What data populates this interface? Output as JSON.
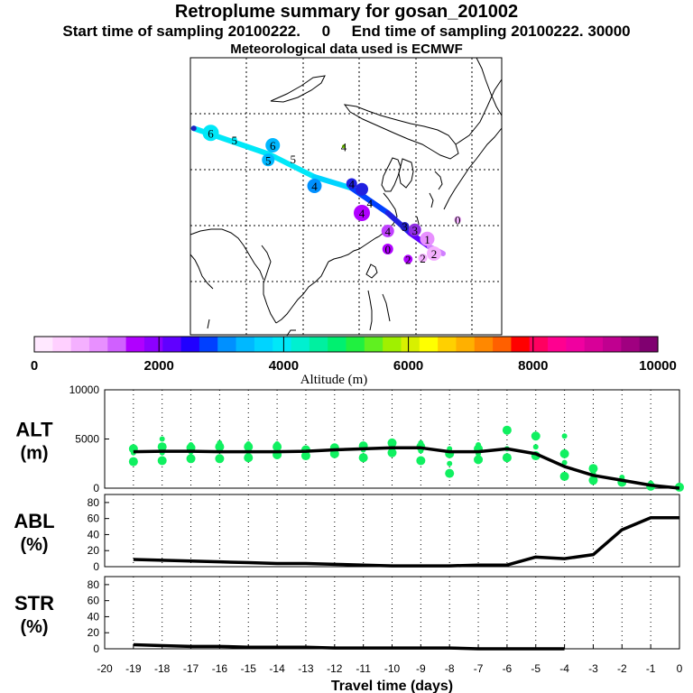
{
  "title": "Retroplume summary for gosan_201002",
  "subtitle": "Start time of sampling 20100222.     0     End time of sampling 20100222. 30000",
  "met_line": "Meteorological data used is ECMWF",
  "colorbar": {
    "label": "Altitude (m)",
    "ticks": [
      "0",
      "2000",
      "4000",
      "6000",
      "8000",
      "10000"
    ],
    "colors": [
      "#ffe8ff",
      "#ffd0ff",
      "#f4b0ff",
      "#e890ff",
      "#d060ff",
      "#b000ff",
      "#8c00ff",
      "#6000ff",
      "#2000ff",
      "#0040ff",
      "#0090ff",
      "#00b8ff",
      "#00d4ff",
      "#00e8f8",
      "#00f0d0",
      "#00f0a0",
      "#00f070",
      "#20f040",
      "#60f020",
      "#a0f000",
      "#d8f000",
      "#ffff00",
      "#ffd000",
      "#ffb000",
      "#ff8800",
      "#ff6000",
      "#ff0000",
      "#ff0060",
      "#ff0090",
      "#f000a0",
      "#d80098",
      "#c00090",
      "#a00080",
      "#800070"
    ]
  },
  "map": {
    "points": [
      {
        "lon": 111.8,
        "lat": 37.9,
        "label": "6",
        "color": "#00e8f8",
        "size": 9
      },
      {
        "lon": 110.3,
        "lat": 38.3,
        "label": "",
        "color": "#2020c0",
        "size": 3
      },
      {
        "lon": 113.9,
        "lat": 37.3,
        "label": "5",
        "color": "#00e8f8",
        "size": 3
      },
      {
        "lon": 117.3,
        "lat": 36.8,
        "label": "6",
        "color": "#00b8ff",
        "size": 8
      },
      {
        "lon": 116.9,
        "lat": 35.5,
        "label": "5",
        "color": "#00b8ff",
        "size": 7
      },
      {
        "lon": 119.1,
        "lat": 35.6,
        "label": "5",
        "color": "#000000",
        "size": 0
      },
      {
        "lon": 123.6,
        "lat": 36.7,
        "label": "4",
        "color": "#80e000",
        "size": 2
      },
      {
        "lon": 121.0,
        "lat": 33.2,
        "label": "4",
        "color": "#0090ff",
        "size": 8
      },
      {
        "lon": 124.3,
        "lat": 33.4,
        "label": "4",
        "color": "#2020e0",
        "size": 6
      },
      {
        "lon": 125.2,
        "lat": 32.9,
        "label": "",
        "color": "#2020e0",
        "size": 7
      },
      {
        "lon": 125.9,
        "lat": 31.7,
        "label": "4",
        "color": "#000000",
        "size": 0
      },
      {
        "lon": 125.2,
        "lat": 30.8,
        "label": "4",
        "color": "#b000ff",
        "size": 9
      },
      {
        "lon": 127.5,
        "lat": 29.2,
        "label": "4",
        "color": "#c040ff",
        "size": 7
      },
      {
        "lon": 129.0,
        "lat": 29.6,
        "label": "3",
        "color": "#2020c0",
        "size": 5
      },
      {
        "lon": 129.9,
        "lat": 29.3,
        "label": "3",
        "color": "#9030e0",
        "size": 7
      },
      {
        "lon": 131.0,
        "lat": 28.5,
        "label": "1",
        "color": "#e890ff",
        "size": 8
      },
      {
        "lon": 133.7,
        "lat": 30.2,
        "label": "0",
        "color": "#f4b0ff",
        "size": 4
      },
      {
        "lon": 127.5,
        "lat": 27.6,
        "label": "0",
        "color": "#b000ff",
        "size": 6
      },
      {
        "lon": 129.3,
        "lat": 26.7,
        "label": "2",
        "color": "#b000ff",
        "size": 5
      },
      {
        "lon": 130.6,
        "lat": 26.8,
        "label": "2",
        "color": "#f4b0ff",
        "size": 5
      },
      {
        "lon": 131.6,
        "lat": 27.2,
        "label": "2",
        "color": "#f4b0ff",
        "size": 8
      }
    ],
    "centerline": [
      {
        "lon": 110.3,
        "lat": 38.3,
        "color": "#00e8f8"
      },
      {
        "lon": 117.0,
        "lat": 36.0,
        "color": "#00e8f8"
      },
      {
        "lon": 121.0,
        "lat": 34.0,
        "color": "#00d4ff"
      },
      {
        "lon": 124.3,
        "lat": 33.0,
        "color": "#0040ff"
      },
      {
        "lon": 127.5,
        "lat": 30.8,
        "color": "#2020e0"
      },
      {
        "lon": 129.5,
        "lat": 29.0,
        "color": "#6000ff"
      },
      {
        "lon": 131.2,
        "lat": 27.8,
        "color": "#d080ff"
      },
      {
        "lon": 132.4,
        "lat": 27.2,
        "color": "#f4b0ff"
      }
    ]
  },
  "chart_data": [
    {
      "type": "line",
      "name": "ALT",
      "ylabel": "ALT",
      "yunit": "(m)",
      "xlim": [
        -20,
        0
      ],
      "ylim": [
        0,
        10000
      ],
      "yticks": [
        0,
        5000,
        10000
      ],
      "ytick_labels": [
        "0",
        "5000",
        "10000"
      ],
      "x": [
        -19,
        -18,
        -17,
        -16,
        -15,
        -14,
        -13,
        -12,
        -11,
        -10,
        -9,
        -8,
        -7,
        -6,
        -5,
        -4,
        -3,
        -2,
        -1,
        0
      ],
      "values": [
        3700,
        3750,
        3750,
        3700,
        3700,
        3700,
        3750,
        3900,
        4000,
        4100,
        4100,
        3700,
        3700,
        4000,
        3500,
        2200,
        1300,
        800,
        300,
        0
      ],
      "scatter_dots": [
        {
          "x": -19,
          "y": [
            2700,
            3600,
            4000,
            4200
          ]
        },
        {
          "x": -18,
          "y": [
            2800,
            3600,
            4200,
            5000
          ]
        },
        {
          "x": -17,
          "y": [
            3000,
            3700,
            4100,
            4400
          ]
        },
        {
          "x": -16,
          "y": [
            3000,
            3800,
            4200,
            4600
          ]
        },
        {
          "x": -15,
          "y": [
            3100,
            3700,
            4200,
            4500
          ]
        },
        {
          "x": -14,
          "y": [
            3400,
            3700,
            4200,
            4500
          ]
        },
        {
          "x": -13,
          "y": [
            3300,
            3600,
            3900
          ]
        },
        {
          "x": -12,
          "y": [
            3500,
            3800,
            4100
          ]
        },
        {
          "x": -11,
          "y": [
            3100,
            3900,
            4300
          ]
        },
        {
          "x": -10,
          "y": [
            3600,
            4200,
            4600
          ]
        },
        {
          "x": -9,
          "y": [
            2800,
            3800,
            4200,
            4600
          ]
        },
        {
          "x": -8,
          "y": [
            1500,
            2500,
            3500,
            4000
          ]
        },
        {
          "x": -7,
          "y": [
            2900,
            3500,
            4000,
            4400
          ]
        },
        {
          "x": -6,
          "y": [
            3100,
            4000,
            5900
          ]
        },
        {
          "x": -5,
          "y": [
            3300,
            4200,
            5300
          ]
        },
        {
          "x": -4,
          "y": [
            1200,
            2600,
            3500,
            5300
          ]
        },
        {
          "x": -3,
          "y": [
            800,
            1500,
            2000
          ]
        },
        {
          "x": -2,
          "y": [
            600,
            1100
          ]
        },
        {
          "x": -1,
          "y": [
            200,
            500
          ]
        },
        {
          "x": 0,
          "y": [
            100
          ]
        }
      ],
      "dot_color": "#10f060"
    },
    {
      "type": "line",
      "name": "ABL",
      "ylabel": "ABL",
      "yunit": "(%)",
      "xlim": [
        -20,
        0
      ],
      "ylim": [
        0,
        90
      ],
      "yticks": [
        0,
        20,
        40,
        60,
        80
      ],
      "ytick_labels": [
        "0",
        "20",
        "40",
        "60",
        "80"
      ],
      "x": [
        -19,
        -18,
        -17,
        -16,
        -15,
        -14,
        -13,
        -12,
        -11,
        -10,
        -9,
        -8,
        -7,
        -6,
        -5,
        -4,
        -3,
        -2,
        -1,
        0
      ],
      "values": [
        9,
        8,
        7,
        6,
        5,
        4,
        4,
        3,
        2,
        1,
        1,
        1,
        2,
        2,
        12,
        10,
        15,
        46,
        61,
        61
      ]
    },
    {
      "type": "line",
      "name": "STR",
      "ylabel": "STR",
      "yunit": "(%)",
      "xlim": [
        -20,
        0
      ],
      "ylim": [
        0,
        90
      ],
      "yticks": [
        0,
        20,
        40,
        60,
        80
      ],
      "ytick_labels": [
        "0",
        "20",
        "40",
        "60",
        "80"
      ],
      "x": [
        -19,
        -18,
        -17,
        -16,
        -15,
        -14,
        -13,
        -12,
        -11,
        -10,
        -9,
        -8,
        -7,
        -6,
        -5,
        -4
      ],
      "values": [
        5,
        4,
        3,
        3,
        2,
        2,
        2,
        1,
        1,
        1,
        1,
        1,
        0,
        0,
        0,
        0
      ],
      "xticks": [
        -20,
        -19,
        -18,
        -17,
        -16,
        -15,
        -14,
        -13,
        -12,
        -11,
        -10,
        -9,
        -8,
        -7,
        -6,
        -5,
        -4,
        -3,
        -2,
        -1,
        0
      ],
      "xtick_labels": [
        "-20",
        "-19",
        "-18",
        "-17",
        "-16",
        "-15",
        "-14",
        "-13",
        "-12",
        "-11",
        "-10",
        "-9",
        "-8",
        "-7",
        "-6",
        "-5",
        "-4",
        "-3",
        "-2",
        "-1",
        "0"
      ],
      "xlabel": "Travel time (days)"
    }
  ]
}
